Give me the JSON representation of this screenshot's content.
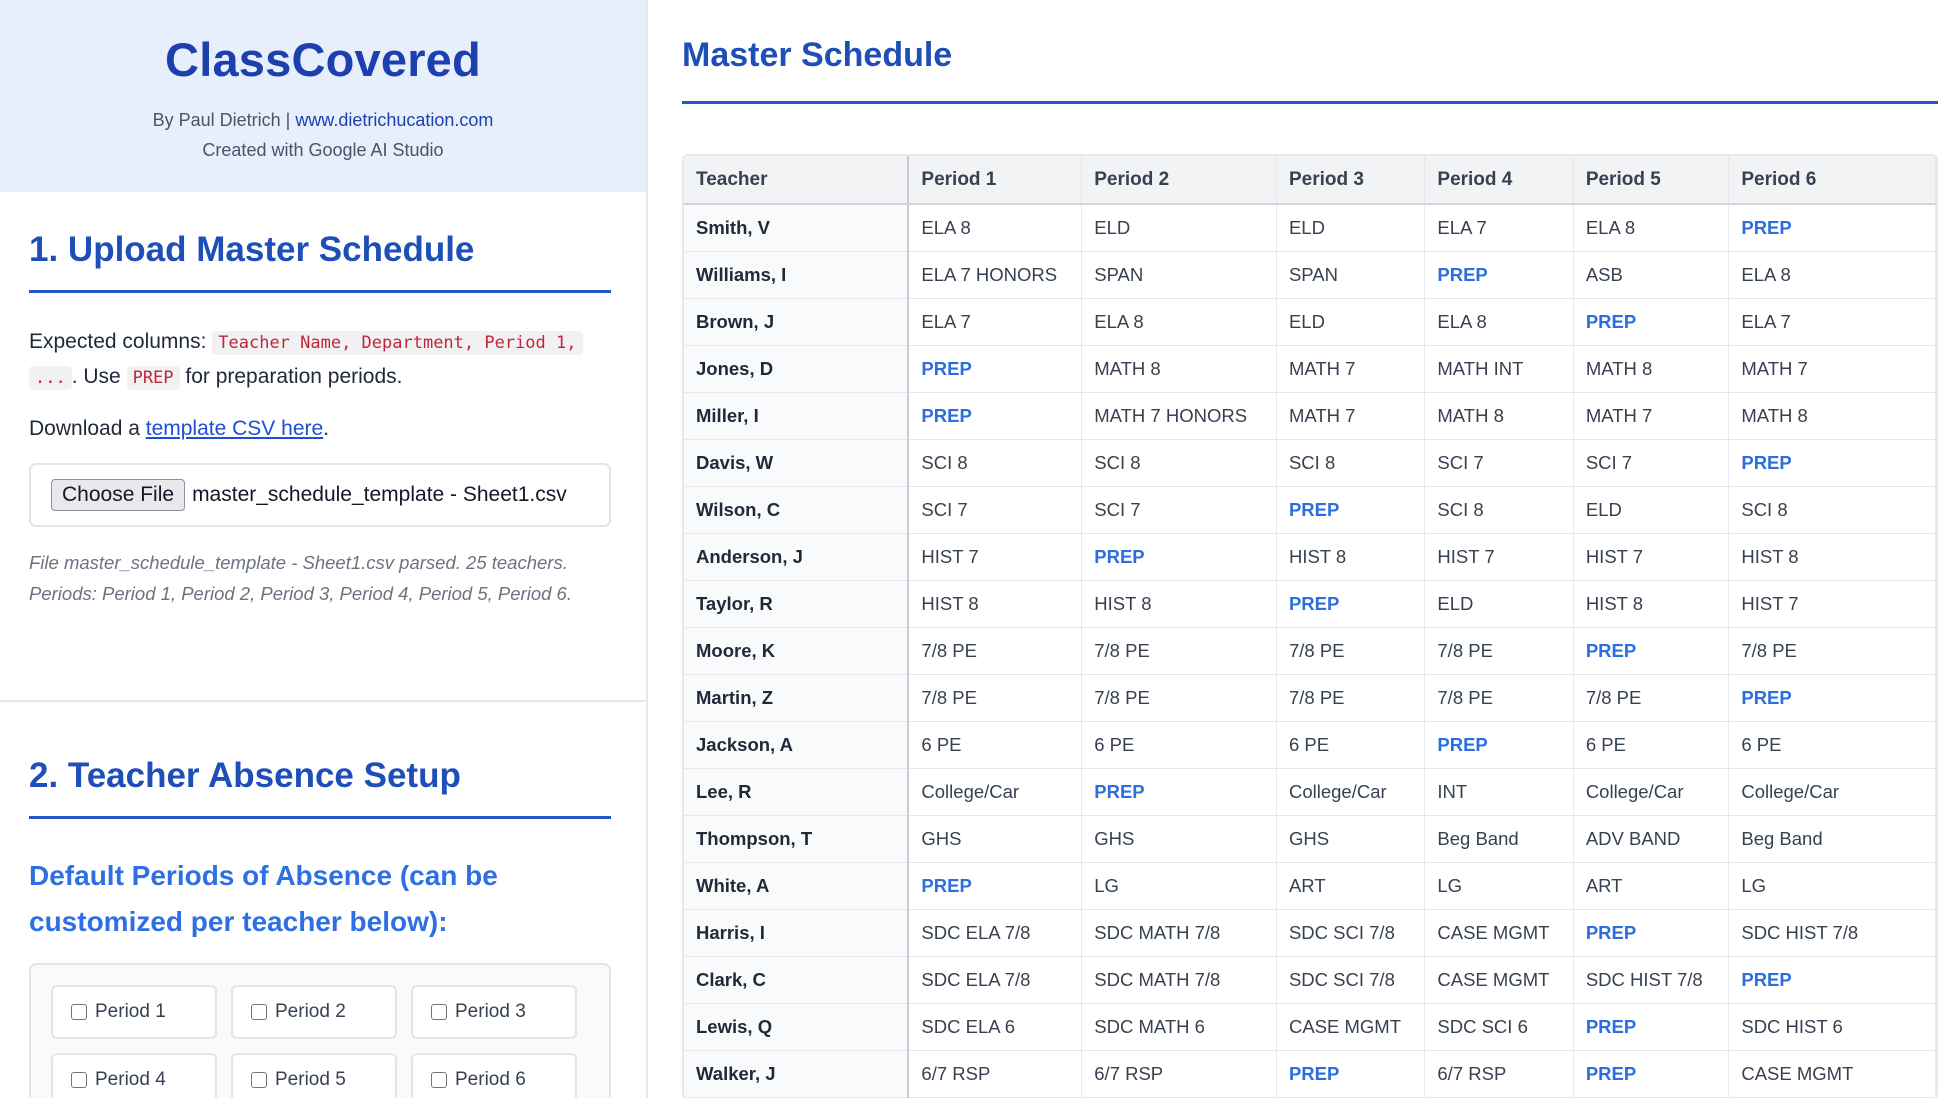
{
  "app": {
    "title": "ClassCovered",
    "author_prefix": "By Paul Dietrich | ",
    "author_link": "www.dietrichucation.com",
    "credit": "Created with Google AI Studio"
  },
  "upload": {
    "heading": "1. Upload Master Schedule",
    "expected_label": "Expected columns: ",
    "expected_code_1": "Teacher Name, Department, Period 1,",
    "expected_code_2": "...",
    "use_text": ". Use ",
    "prep_code": "PREP",
    "prep_suffix": " for preparation periods.",
    "download_prefix": "Download a ",
    "download_link": "template CSV here",
    "download_suffix": ".",
    "choose_file_label": "Choose File",
    "file_name": "master_schedule_template - Sheet1.csv",
    "status": "File master_schedule_template - Sheet1.csv parsed. 25 teachers. Periods: Period 1, Period 2, Period 3, Period 4, Period 5, Period 6."
  },
  "absence": {
    "heading": "2. Teacher Absence Setup",
    "subheading": "Default Periods of Absence (can be customized per teacher below):",
    "periods": [
      {
        "label": "Period 1",
        "checked": false
      },
      {
        "label": "Period 2",
        "checked": false
      },
      {
        "label": "Period 3",
        "checked": false
      },
      {
        "label": "Period 4",
        "checked": false
      },
      {
        "label": "Period 5",
        "checked": false
      },
      {
        "label": "Period 6",
        "checked": false
      }
    ]
  },
  "schedule": {
    "heading": "Master Schedule",
    "columns": [
      "Teacher",
      "Period 1",
      "Period 2",
      "Period 3",
      "Period 4",
      "Period 5",
      "Period 6"
    ],
    "rows": [
      [
        "Smith, V",
        "ELA 8",
        "ELD",
        "ELD",
        "ELA 7",
        "ELA 8",
        "PREP"
      ],
      [
        "Williams, I",
        "ELA 7 HONORS",
        "SPAN",
        "SPAN",
        "PREP",
        "ASB",
        "ELA 8"
      ],
      [
        "Brown, J",
        "ELA 7",
        "ELA 8",
        "ELD",
        "ELA 8",
        "PREP",
        "ELA 7"
      ],
      [
        "Jones, D",
        "PREP",
        "MATH 8",
        "MATH 7",
        "MATH INT",
        "MATH 8",
        "MATH 7"
      ],
      [
        "Miller, I",
        "PREP",
        "MATH 7 HONORS",
        "MATH 7",
        "MATH 8",
        "MATH 7",
        "MATH 8"
      ],
      [
        "Davis, W",
        "SCI 8",
        "SCI 8",
        "SCI 8",
        "SCI 7",
        "SCI 7",
        "PREP"
      ],
      [
        "Wilson, C",
        "SCI 7",
        "SCI 7",
        "PREP",
        "SCI 8",
        "ELD",
        "SCI 8"
      ],
      [
        "Anderson, J",
        "HIST 7",
        "PREP",
        "HIST 8",
        "HIST 7",
        "HIST 7",
        "HIST 8"
      ],
      [
        "Taylor, R",
        "HIST 8",
        "HIST 8",
        "PREP",
        "ELD",
        "HIST 8",
        "HIST 7"
      ],
      [
        "Moore, K",
        "7/8 PE",
        "7/8 PE",
        "7/8 PE",
        "7/8 PE",
        "PREP",
        "7/8 PE"
      ],
      [
        "Martin, Z",
        "7/8 PE",
        "7/8 PE",
        "7/8 PE",
        "7/8 PE",
        "7/8 PE",
        "PREP"
      ],
      [
        "Jackson, A",
        "6 PE",
        "6 PE",
        "6 PE",
        "PREP",
        "6 PE",
        "6 PE"
      ],
      [
        "Lee, R",
        "College/Car",
        "PREP",
        "College/Car",
        "INT",
        "College/Car",
        "College/Car"
      ],
      [
        "Thompson, T",
        "GHS",
        "GHS",
        "GHS",
        "Beg Band",
        "ADV BAND",
        "Beg Band"
      ],
      [
        "White, A",
        "PREP",
        "LG",
        "ART",
        "LG",
        "ART",
        "LG"
      ],
      [
        "Harris, I",
        "SDC ELA 7/8",
        "SDC MATH 7/8",
        "SDC SCI 7/8",
        "CASE MGMT",
        "PREP",
        "SDC HIST 7/8"
      ],
      [
        "Clark, C",
        "SDC ELA 7/8",
        "SDC MATH 7/8",
        "SDC SCI 7/8",
        "CASE MGMT",
        "SDC HIST 7/8",
        "PREP"
      ],
      [
        "Lewis, Q",
        "SDC ELA 6",
        "SDC MATH 6",
        "CASE MGMT",
        "SDC SCI 6",
        "PREP",
        "SDC HIST 6"
      ],
      [
        "Walker, J",
        "6/7 RSP",
        "6/7 RSP",
        "PREP",
        "6/7 RSP",
        "PREP",
        "CASE MGMT"
      ]
    ]
  },
  "colors": {
    "brand": "#1e40af",
    "heading": "#1e4eb8",
    "prep_highlight": "#2c6ee0",
    "sidebar_header_bg": "#e7effc"
  }
}
